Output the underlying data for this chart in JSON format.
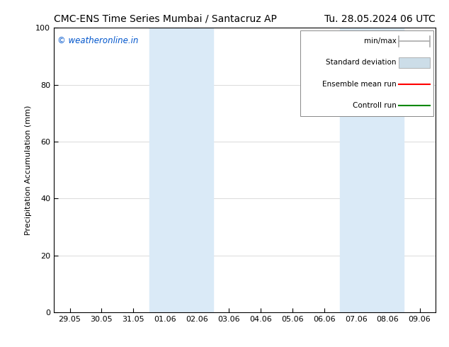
{
  "title_left": "CMC-ENS Time Series Mumbai / Santacruz AP",
  "title_right": "Tu. 28.05.2024 06 UTC",
  "ylabel": "Precipitation Accumulation (mm)",
  "ylim": [
    0,
    100
  ],
  "yticks": [
    0,
    20,
    40,
    60,
    80,
    100
  ],
  "background_color": "#ffffff",
  "plot_bg_color": "#ffffff",
  "shaded_regions": [
    {
      "xstart": 3,
      "xend": 5,
      "color": "#daeaf7"
    },
    {
      "xstart": 9,
      "xend": 11,
      "color": "#daeaf7"
    }
  ],
  "xtick_labels": [
    "29.05",
    "30.05",
    "31.05",
    "01.06",
    "02.06",
    "03.06",
    "04.06",
    "05.06",
    "06.06",
    "07.06",
    "08.06",
    "09.06"
  ],
  "watermark_text": "© weatheronline.in",
  "watermark_color": "#0055cc",
  "legend_items": [
    {
      "label": "min/max",
      "color": "#aaaaaa",
      "style": "line_with_cap"
    },
    {
      "label": "Standard deviation",
      "color": "#ccdde8",
      "style": "filled_box"
    },
    {
      "label": "Ensemble mean run",
      "color": "#ff0000",
      "style": "line"
    },
    {
      "label": "Controll run",
      "color": "#008800",
      "style": "line"
    }
  ],
  "font_size_title": 10,
  "font_size_axis": 8,
  "font_size_tick": 8,
  "font_size_legend": 7.5,
  "font_size_watermark": 8.5,
  "border_color": "#000000",
  "grid_color": "#cccccc",
  "tick_color": "#000000"
}
